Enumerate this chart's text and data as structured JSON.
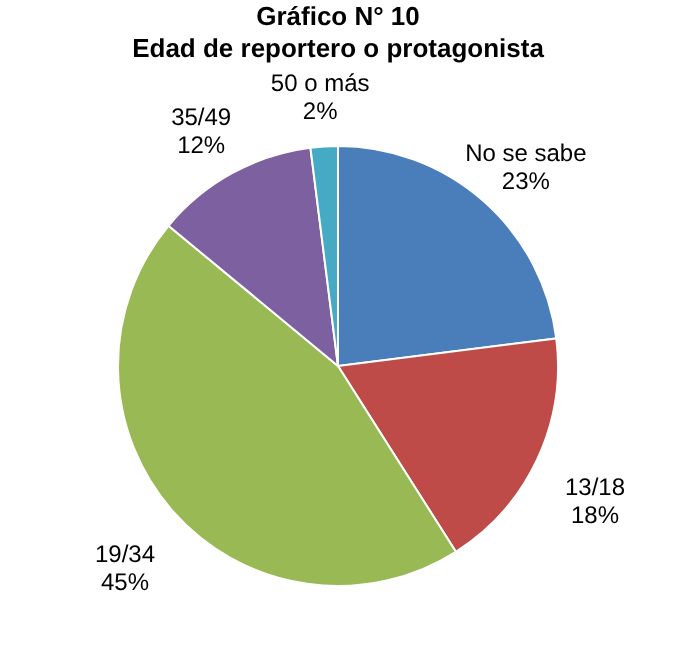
{
  "chart_data": {
    "type": "pie",
    "title": "Gráfico N° 10",
    "subtitle": "Edad de reportero o protagonista",
    "categories": [
      "No se sabe",
      "13/18",
      "19/34",
      "35/49",
      "50 o más"
    ],
    "values": [
      23,
      18,
      45,
      12,
      2
    ],
    "value_labels": [
      "23%",
      "18%",
      "45%",
      "12%",
      "2%"
    ],
    "colors": [
      "#4a7ebb",
      "#be4b48",
      "#98b954",
      "#7d60a0",
      "#46aac5"
    ],
    "legend": false
  }
}
